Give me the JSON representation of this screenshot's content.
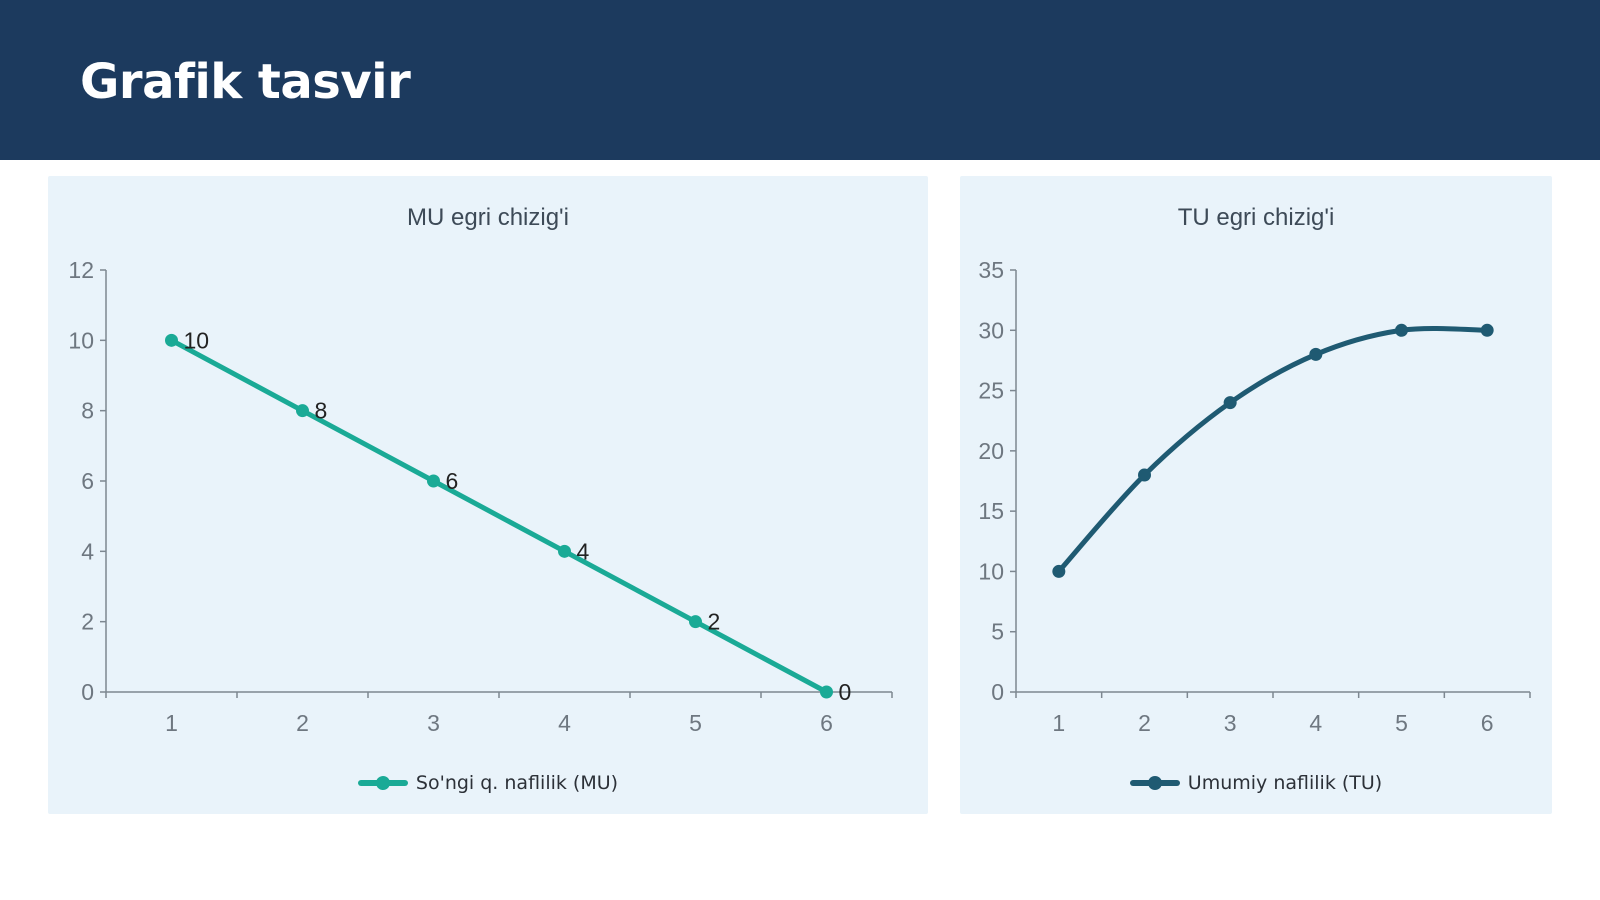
{
  "header": {
    "title": "Grafik tasvir"
  },
  "colors": {
    "header_bg": "#1c3a5e",
    "mu_series": "#1aaa96",
    "tu_series": "#1f5a72",
    "panel_bg": "#e9f3fa"
  },
  "chart_data": [
    {
      "type": "line",
      "title": "MU egri chizig'i",
      "x": [
        1,
        2,
        3,
        4,
        5,
        6
      ],
      "series": [
        {
          "name": "So'ngi q. naflilik (MU)",
          "values": [
            10,
            8,
            6,
            4,
            2,
            0
          ]
        }
      ],
      "data_labels": true,
      "xlabel": "",
      "ylabel": "",
      "ylim": [
        0,
        12
      ],
      "yticks": [
        0,
        2,
        4,
        6,
        8,
        10,
        12
      ],
      "smooth": false,
      "grid": false,
      "legend": "bottom"
    },
    {
      "type": "line",
      "title": "TU egri chizig'i",
      "x": [
        1,
        2,
        3,
        4,
        5,
        6
      ],
      "series": [
        {
          "name": "Umumiy naflilik (TU)",
          "values": [
            10,
            18,
            24,
            28,
            30,
            30
          ]
        }
      ],
      "data_labels": false,
      "xlabel": "",
      "ylabel": "",
      "ylim": [
        0,
        35
      ],
      "yticks": [
        0,
        5,
        10,
        15,
        20,
        25,
        30,
        35
      ],
      "smooth": true,
      "grid": false,
      "legend": "bottom"
    }
  ]
}
